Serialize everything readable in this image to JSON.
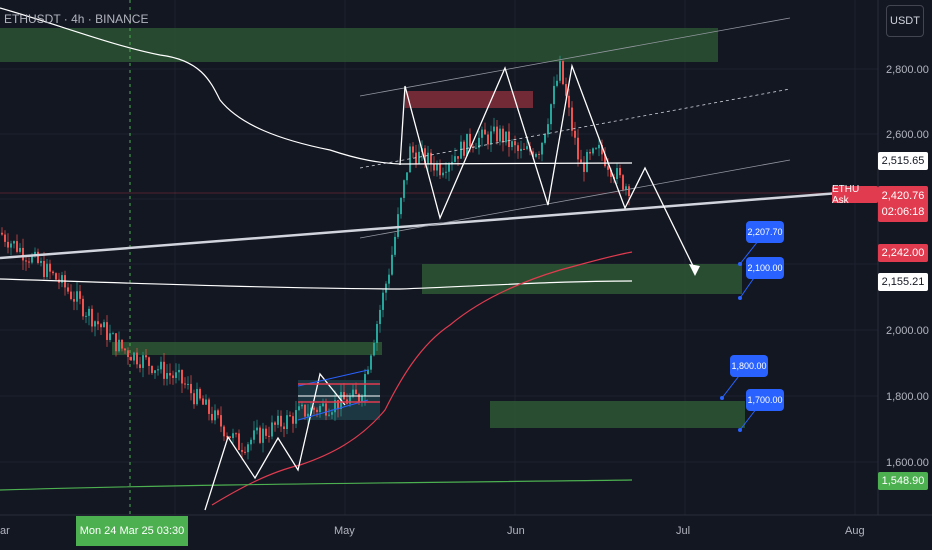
{
  "header": {
    "symbol": "ETHUSDT · 4h · BINANCE",
    "currency": "USDT"
  },
  "axis": {
    "y_ticks": [
      "2,800.00",
      "2,600.00",
      "2,000.00",
      "1,800.00",
      "1,600.00"
    ],
    "x_ticks": [
      "ar",
      "May",
      "Jun",
      "Jul",
      "Aug"
    ],
    "crosshair_time": "Mon 24 Mar 25   03:30"
  },
  "price_tags": {
    "white_ma": "2,515.65",
    "ethu_label": "ETHU Ask",
    "ask_price": "2,420.76",
    "ask_timer": "02:06:18",
    "red_ma": "2,242.00",
    "white_ma_long": "2,155.21",
    "green_ma": "1,548.90"
  },
  "callouts": [
    "2,207.70",
    "2,100.00",
    "1,800.00",
    "1,700.00"
  ],
  "colors": {
    "background": "#131722",
    "candle_up": "#26a69a",
    "candle_down": "#ef5350",
    "ma_red": "#e13b4f",
    "ma_green": "#4caf50",
    "zone_green": "#2e5b34",
    "zone_red": "#8a2f3c",
    "callout_blue": "#2962ff"
  },
  "chart_data": {
    "type": "line",
    "y_axis_ticks": [
      2800,
      2600,
      2000,
      1800,
      1600
    ],
    "x_axis_ticks": [
      "May",
      "Jun",
      "Jul",
      "Aug"
    ],
    "series": [
      {
        "x": [
          0,
          60,
          120,
          180,
          240,
          300,
          360,
          390,
          410,
          440,
          470,
          500,
          520,
          540,
          560,
          580,
          600,
          620,
          640
        ],
        "y": [
          2300,
          2150,
          1950,
          1850,
          1650,
          1750,
          1800,
          2200,
          2550,
          2500,
          2580,
          2600,
          2540,
          2560,
          2800,
          2500,
          2550,
          2460,
          2420
        ]
      },
      {
        "x": [
          210,
          240,
          280,
          330,
          380,
          420,
          470,
          520,
          580,
          630
        ],
        "y": [
          1580,
          1620,
          1700,
          1770,
          1880,
          1970,
          2050,
          2130,
          2200,
          2242
        ]
      },
      {
        "x": [
          0,
          200,
          420,
          632
        ],
        "y": [
          2160,
          2140,
          2130,
          2155
        ]
      },
      {
        "x": [
          0,
          300,
          632
        ],
        "y": [
          1530,
          1540,
          1549
        ]
      },
      {
        "x": [
          0,
          100,
          200,
          300,
          400,
          500,
          632
        ],
        "y": [
          3000,
          2950,
          2750,
          2560,
          2510,
          2515,
          2516
        ]
      }
    ],
    "zones": [
      {
        "from": 2830,
        "to": 2930
      },
      {
        "from": 2060,
        "to": 2120
      },
      {
        "from": 1950,
        "to": 1990
      },
      {
        "from": 1720,
        "to": 1800
      },
      {
        "from": 2750,
        "to": 2800
      }
    ],
    "levels": [
      2420.76
    ]
  }
}
